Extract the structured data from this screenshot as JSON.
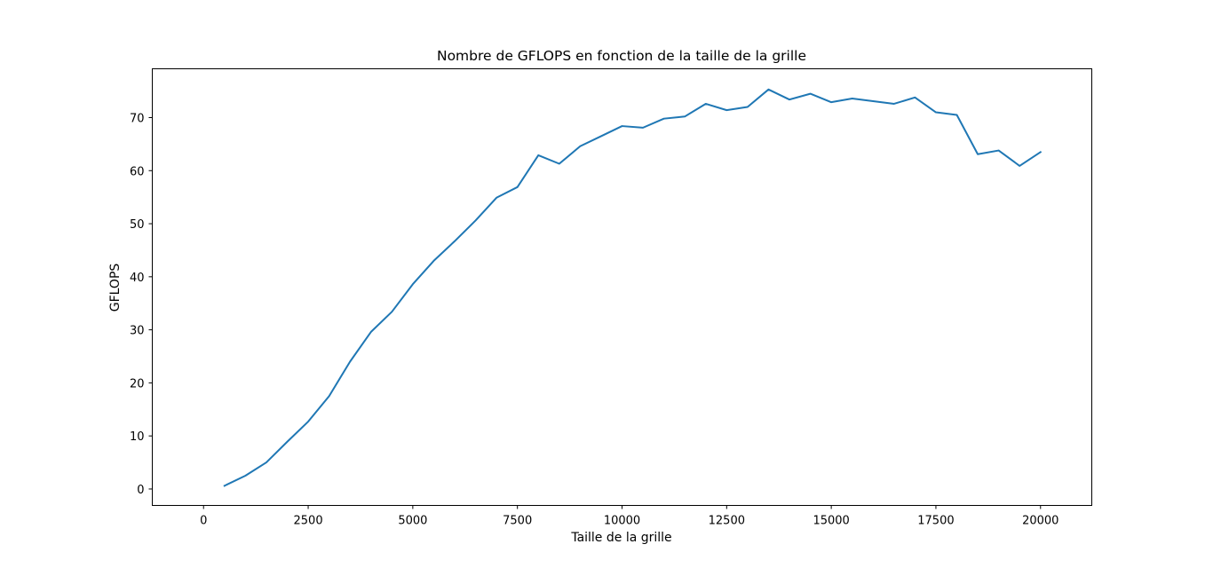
{
  "chart_data": {
    "type": "line",
    "title": "Nombre de GFLOPS en fonction de la taille de la grille",
    "xlabel": "Taille de la grille",
    "ylabel": "GFLOPS",
    "xlim": [
      -1225,
      21225
    ],
    "ylim": [
      -3.1,
      79.2
    ],
    "x_ticks": [
      0,
      2500,
      5000,
      7500,
      10000,
      12500,
      15000,
      17500,
      20000
    ],
    "x_tick_labels": [
      "0",
      "2500",
      "5000",
      "7500",
      "10000",
      "12500",
      "15000",
      "17500",
      "20000"
    ],
    "y_ticks": [
      0,
      10,
      20,
      30,
      40,
      50,
      60,
      70
    ],
    "y_tick_labels": [
      "0",
      "10",
      "20",
      "30",
      "40",
      "50",
      "60",
      "70"
    ],
    "grid": false,
    "legend": "none",
    "series": [
      {
        "color": "#1f77b4",
        "x": [
          500,
          1000,
          1500,
          2000,
          2500,
          3000,
          3500,
          4000,
          4500,
          5000,
          5500,
          6000,
          6500,
          7000,
          7500,
          8000,
          8500,
          9000,
          9500,
          10000,
          10500,
          11000,
          11500,
          12000,
          12500,
          13000,
          13500,
          14000,
          14500,
          15000,
          15500,
          16000,
          16500,
          17000,
          17500,
          18000,
          18500,
          19000,
          19500,
          20000
        ],
        "y": [
          0.6,
          2.5,
          5.0,
          8.9,
          12.7,
          17.5,
          24.0,
          29.6,
          33.4,
          38.6,
          43.0,
          46.7,
          50.6,
          54.9,
          56.9,
          62.9,
          61.3,
          64.6,
          66.5,
          68.4,
          68.1,
          69.8,
          70.2,
          72.6,
          71.4,
          72.0,
          75.3,
          73.4,
          74.5,
          72.9,
          73.6,
          73.1,
          72.6,
          73.8,
          71.0,
          70.5,
          63.1,
          63.8,
          60.9,
          63.5
        ]
      }
    ]
  }
}
